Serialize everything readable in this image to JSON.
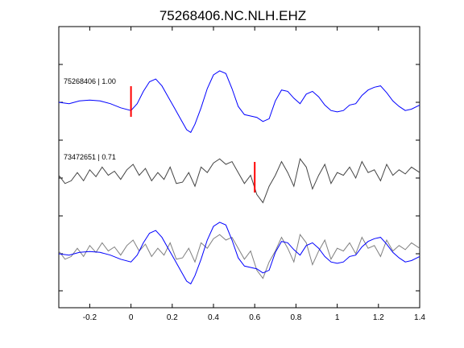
{
  "chart_data": {
    "type": "line",
    "title": "75268406.NC.NLH.EHZ",
    "xlabel": "",
    "ylabel": "",
    "xlim": [
      -0.35,
      1.4
    ],
    "x_ticks": [
      "-0.2",
      "0",
      "0.2",
      "0.4",
      "0.6",
      "0.8",
      "1",
      "1.2",
      "1.4"
    ],
    "x_tick_values": [
      -0.2,
      0,
      0.2,
      0.4,
      0.6,
      0.8,
      1.0,
      1.2,
      1.4
    ],
    "grid": false,
    "colors": {
      "reference": "#0000ff",
      "correlated": "#444444",
      "overlay_gray": "#808080",
      "pick": "#ff0000"
    },
    "traces": [
      {
        "label": "75268406 | 1.00",
        "color": "#0000ff",
        "pick_time": 0.0,
        "offset": 0,
        "x": [
          -0.35,
          -0.3,
          -0.25,
          -0.2,
          -0.15,
          -0.1,
          -0.05,
          0.0,
          0.03,
          0.06,
          0.09,
          0.12,
          0.15,
          0.18,
          0.21,
          0.24,
          0.27,
          0.29,
          0.31,
          0.34,
          0.37,
          0.4,
          0.43,
          0.46,
          0.49,
          0.52,
          0.55,
          0.58,
          0.61,
          0.64,
          0.67,
          0.7,
          0.73,
          0.76,
          0.79,
          0.82,
          0.85,
          0.88,
          0.91,
          0.94,
          0.97,
          1.0,
          1.03,
          1.06,
          1.09,
          1.12,
          1.15,
          1.18,
          1.21,
          1.24,
          1.27,
          1.3,
          1.33,
          1.36,
          1.4
        ],
        "y": [
          0.0,
          -0.05,
          0.05,
          0.08,
          0.05,
          -0.05,
          -0.2,
          -0.3,
          -0.05,
          0.4,
          0.75,
          0.85,
          0.6,
          0.2,
          -0.2,
          -0.6,
          -1.0,
          -1.1,
          -0.8,
          -0.2,
          0.5,
          1.0,
          1.15,
          1.05,
          0.5,
          -0.15,
          -0.45,
          -0.5,
          -0.55,
          -0.7,
          -0.6,
          0.05,
          0.45,
          0.4,
          0.15,
          -0.05,
          0.3,
          0.4,
          0.2,
          -0.1,
          -0.3,
          -0.35,
          -0.3,
          -0.1,
          -0.05,
          0.25,
          0.45,
          0.55,
          0.6,
          0.35,
          0.05,
          -0.15,
          -0.3,
          -0.25,
          -0.1
        ]
      },
      {
        "label": "73472651 | 0.71",
        "color": "#444444",
        "pick_time": 0.6,
        "offset": 0,
        "x": [
          -0.35,
          -0.32,
          -0.29,
          -0.26,
          -0.23,
          -0.2,
          -0.17,
          -0.14,
          -0.11,
          -0.08,
          -0.05,
          -0.02,
          0.01,
          0.04,
          0.07,
          0.1,
          0.13,
          0.16,
          0.19,
          0.22,
          0.25,
          0.28,
          0.31,
          0.34,
          0.37,
          0.4,
          0.43,
          0.46,
          0.49,
          0.52,
          0.55,
          0.58,
          0.61,
          0.64,
          0.67,
          0.7,
          0.73,
          0.76,
          0.79,
          0.82,
          0.85,
          0.88,
          0.91,
          0.94,
          0.97,
          1.0,
          1.03,
          1.06,
          1.09,
          1.12,
          1.15,
          1.18,
          1.21,
          1.24,
          1.27,
          1.3,
          1.33,
          1.36,
          1.4
        ],
        "y": [
          0.1,
          -0.2,
          -0.1,
          0.2,
          -0.1,
          0.3,
          0.05,
          0.4,
          0.1,
          0.25,
          -0.05,
          0.3,
          0.5,
          0.1,
          0.35,
          -0.1,
          0.2,
          -0.05,
          0.4,
          -0.2,
          -0.15,
          0.2,
          -0.3,
          0.4,
          0.2,
          0.55,
          0.7,
          0.5,
          0.6,
          0.2,
          -0.2,
          0.1,
          -0.6,
          -0.9,
          -0.3,
          0.1,
          0.6,
          0.2,
          -0.3,
          0.7,
          0.4,
          -0.4,
          0.1,
          0.5,
          -0.2,
          0.2,
          0.1,
          0.4,
          0.0,
          0.6,
          0.2,
          0.3,
          -0.1,
          0.5,
          0.1,
          0.3,
          0.15,
          0.4,
          0.2
        ]
      }
    ],
    "overlay": {
      "description": "",
      "offset": 0
    }
  }
}
